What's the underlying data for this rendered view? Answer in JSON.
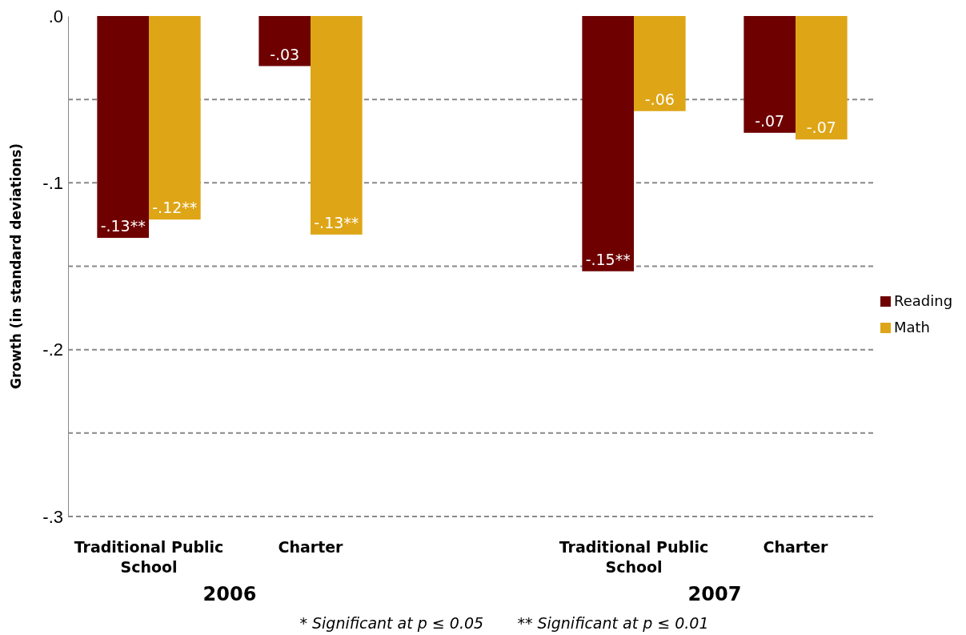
{
  "chart_data": {
    "type": "bar",
    "ylabel": "Growth (in standard deviations)",
    "categories": [
      "Traditional Public School",
      "Charter",
      null,
      "Traditional Public School",
      "Charter"
    ],
    "series": [
      {
        "name": "Reading",
        "color": "#6e0000",
        "values": [
          -0.133,
          -0.03,
          null,
          -0.153,
          -0.07
        ],
        "value_labels": [
          "-.13**",
          "-.03",
          null,
          "-.15**",
          "-.07"
        ]
      },
      {
        "name": "Math",
        "color": "#dea516",
        "values": [
          -0.122,
          -0.131,
          null,
          -0.057,
          -0.074
        ],
        "value_labels": [
          "-.12**",
          "-.13**",
          null,
          "-.06",
          "-.07"
        ]
      }
    ],
    "ylim": [
      -0.3,
      0
    ],
    "yticks": [
      {
        "value": 0,
        "label": ".0"
      },
      {
        "value": -0.05,
        "label": null
      },
      {
        "value": -0.1,
        "label": "-.1"
      },
      {
        "value": -0.15,
        "label": null
      },
      {
        "value": -0.2,
        "label": "-.2"
      },
      {
        "value": -0.25,
        "label": null
      },
      {
        "value": -0.3,
        "label": "-.3"
      }
    ],
    "grid": true,
    "legend": "right",
    "annotations": [
      "2006",
      "2007",
      "* Significant at p ≤ 0.05       ** Significant at p ≤ 0.01"
    ]
  }
}
